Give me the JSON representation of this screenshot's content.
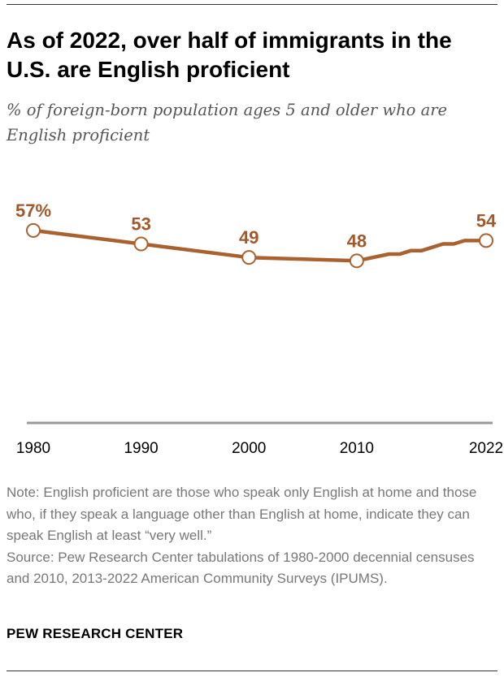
{
  "title": "As of 2022, over half of immigrants in the U.S. are English proficient",
  "subtitle": "% of foreign-born population ages 5 and older who are English proficient",
  "note": "Note: English proficient are those who speak only English at home and those who, if they speak a language other than English at home, indicate they can speak English at least “very well.”",
  "source": "Source: Pew Research Center tabulations of 1980-2000 decennial censuses and 2010, 2013-2022 American Community Surveys (IPUMS).",
  "brand": "PEW RESEARCH CENTER",
  "colors": {
    "line": "#a9622f",
    "label": "#a0592a",
    "axis": "#999999",
    "marker_fill": "#ffffff"
  },
  "chart_data": {
    "type": "line",
    "title": "As of 2022, over half of immigrants in the U.S. are English proficient",
    "subtitle": "% of foreign-born population ages 5 and older who are English proficient",
    "xlabel": "",
    "ylabel": "",
    "xlim": [
      1980,
      2022
    ],
    "ylim": [
      0,
      65
    ],
    "grid": false,
    "x_ticks": [
      "1980",
      "1990",
      "2000",
      "2010",
      "2022"
    ],
    "series": [
      {
        "x": [
          1980,
          1990,
          2000,
          2010,
          2013,
          2014,
          2015,
          2016,
          2017,
          2018,
          2019,
          2020,
          2021,
          2022
        ],
        "values": [
          57,
          53,
          49,
          48,
          50,
          50,
          51,
          51,
          52,
          53,
          53,
          54,
          54,
          54
        ],
        "markers": [
          1980,
          1990,
          2000,
          2010,
          2022
        ],
        "data_labels": [
          {
            "x": 1980,
            "text": "57%"
          },
          {
            "x": 1990,
            "text": "53"
          },
          {
            "x": 2000,
            "text": "49"
          },
          {
            "x": 2010,
            "text": "48"
          },
          {
            "x": 2022,
            "text": "54"
          }
        ]
      }
    ]
  }
}
